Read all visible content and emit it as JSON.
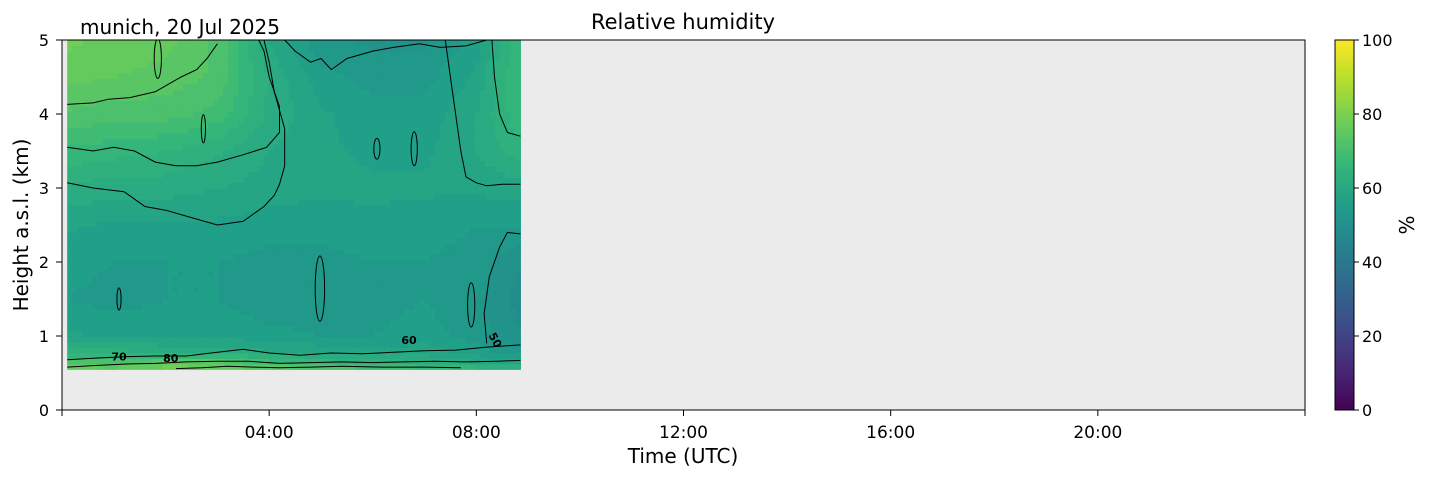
{
  "chart_data": {
    "type": "heatmap",
    "title": "Relative humidity",
    "location_date": "munich, 20 Jul 2025",
    "xlabel": "Time (UTC)",
    "ylabel": "Height a.s.l. (km)",
    "xlim_hours": [
      0,
      24
    ],
    "ylim_km": [
      0,
      5
    ],
    "x_ticks": [
      {
        "hour": 4,
        "label": "04:00"
      },
      {
        "hour": 8,
        "label": "08:00"
      },
      {
        "hour": 12,
        "label": "12:00"
      },
      {
        "hour": 16,
        "label": "16:00"
      },
      {
        "hour": 20,
        "label": "20:00"
      }
    ],
    "y_ticks": [
      {
        "value": 0,
        "label": "0"
      },
      {
        "value": 1,
        "label": "1"
      },
      {
        "value": 2,
        "label": "2"
      },
      {
        "value": 3,
        "label": "3"
      },
      {
        "value": 4,
        "label": "4"
      },
      {
        "value": 5,
        "label": "5"
      }
    ],
    "colorbar": {
      "label": "%",
      "colormap": "viridis",
      "range": [
        0,
        100
      ],
      "ticks": [
        {
          "value": 0,
          "label": "0"
        },
        {
          "value": 20,
          "label": "20"
        },
        {
          "value": 40,
          "label": "40"
        },
        {
          "value": 60,
          "label": "60"
        },
        {
          "value": 80,
          "label": "80"
        },
        {
          "value": 100,
          "label": "100"
        }
      ]
    },
    "data_extent_hours": [
      0.1,
      8.85
    ],
    "data_extent_km": [
      0.55,
      5.0
    ],
    "missing_color": "#ebebeb",
    "times_hours": [
      0.1,
      1.0,
      2.0,
      3.0,
      4.0,
      5.0,
      6.0,
      7.0,
      8.0,
      8.85
    ],
    "heights_km": [
      0.55,
      0.65,
      0.8,
      1.0,
      1.5,
      2.0,
      2.5,
      3.0,
      3.5,
      4.0,
      4.5,
      5.0
    ],
    "values": [
      [
        78,
        77,
        80,
        79,
        76,
        75,
        72,
        70,
        68,
        66
      ],
      [
        72,
        71,
        74,
        74,
        68,
        66,
        64,
        62,
        60,
        58
      ],
      [
        63,
        63,
        62,
        62,
        60,
        59,
        58,
        59,
        56,
        53
      ],
      [
        58,
        57,
        57,
        57,
        56,
        55,
        55,
        56,
        54,
        50
      ],
      [
        55,
        54,
        55,
        55,
        53,
        53,
        54,
        55,
        53,
        49
      ],
      [
        56,
        55,
        55,
        55,
        54,
        54,
        55,
        55,
        54,
        50
      ],
      [
        58,
        57,
        57,
        57,
        56,
        56,
        57,
        56,
        55,
        55
      ],
      [
        62,
        61,
        61,
        60,
        59,
        58,
        58,
        58,
        58,
        59
      ],
      [
        67,
        66,
        65,
        63,
        60,
        58,
        57,
        57,
        60,
        64
      ],
      [
        72,
        71,
        71,
        69,
        62,
        58,
        56,
        56,
        60,
        67
      ],
      [
        76,
        75,
        74,
        72,
        62,
        56,
        54,
        54,
        58,
        68
      ],
      [
        78,
        77,
        76,
        72,
        60,
        53,
        52,
        52,
        56,
        68
      ]
    ],
    "contour_labels": [
      {
        "text": "70",
        "hour": 1.1,
        "km": 0.67,
        "rotate": 0
      },
      {
        "text": "80",
        "hour": 2.1,
        "km": 0.65,
        "rotate": 0
      },
      {
        "text": "60",
        "hour": 6.7,
        "km": 0.89,
        "rotate": 0
      },
      {
        "text": "50",
        "hour": 8.3,
        "km": 0.92,
        "rotate": 62
      }
    ],
    "contour_lines": [
      [
        [
          0.1,
          5.0
        ],
        [
          0.8,
          5.0
        ]
      ],
      [
        [
          0.1,
          4.13
        ],
        [
          0.6,
          4.15
        ],
        [
          0.9,
          4.2
        ],
        [
          1.3,
          4.22
        ],
        [
          1.8,
          4.3
        ],
        [
          2.3,
          4.5
        ],
        [
          2.6,
          4.6
        ],
        [
          2.8,
          4.75
        ],
        [
          3.0,
          4.95
        ]
      ],
      [
        [
          0.1,
          3.55
        ],
        [
          0.6,
          3.5
        ],
        [
          1.0,
          3.55
        ],
        [
          1.4,
          3.5
        ],
        [
          1.8,
          3.35
        ],
        [
          2.2,
          3.3
        ],
        [
          2.6,
          3.3
        ],
        [
          3.0,
          3.35
        ],
        [
          3.5,
          3.45
        ],
        [
          3.95,
          3.55
        ],
        [
          4.2,
          3.75
        ],
        [
          4.2,
          4.1
        ],
        [
          4.0,
          4.5
        ],
        [
          3.9,
          4.85
        ],
        [
          3.8,
          5.0
        ]
      ],
      [
        [
          0.1,
          3.07
        ],
        [
          0.6,
          3.0
        ],
        [
          1.2,
          2.95
        ],
        [
          1.6,
          2.75
        ],
        [
          2.0,
          2.7
        ],
        [
          2.5,
          2.6
        ],
        [
          3.0,
          2.5
        ],
        [
          3.5,
          2.55
        ],
        [
          3.9,
          2.75
        ],
        [
          4.1,
          2.9
        ],
        [
          4.2,
          3.05
        ],
        [
          4.3,
          3.3
        ],
        [
          4.3,
          3.8
        ],
        [
          4.1,
          4.3
        ],
        [
          4.0,
          4.7
        ],
        [
          3.9,
          5.0
        ]
      ],
      [
        [
          4.3,
          5.0
        ],
        [
          4.5,
          4.85
        ],
        [
          4.8,
          4.7
        ],
        [
          5.0,
          4.75
        ],
        [
          5.2,
          4.6
        ],
        [
          5.5,
          4.75
        ],
        [
          6.0,
          4.85
        ],
        [
          6.4,
          4.9
        ],
        [
          6.9,
          4.95
        ],
        [
          7.3,
          4.9
        ],
        [
          7.8,
          4.92
        ],
        [
          8.2,
          5.0
        ]
      ],
      [
        [
          7.4,
          5.0
        ],
        [
          7.5,
          4.5
        ],
        [
          7.6,
          4.0
        ],
        [
          7.7,
          3.5
        ],
        [
          7.8,
          3.15
        ],
        [
          8.0,
          3.07
        ],
        [
          8.2,
          3.03
        ],
        [
          8.5,
          3.05
        ],
        [
          8.85,
          3.05
        ]
      ],
      [
        [
          8.3,
          5.0
        ],
        [
          8.35,
          4.5
        ],
        [
          8.45,
          4.0
        ],
        [
          8.6,
          3.75
        ],
        [
          8.85,
          3.7
        ]
      ],
      [
        [
          8.85,
          2.38
        ],
        [
          8.6,
          2.4
        ],
        [
          8.45,
          2.2
        ],
        [
          8.25,
          1.8
        ],
        [
          8.15,
          1.3
        ],
        [
          8.2,
          0.9
        ]
      ],
      [
        [
          0.1,
          0.68
        ],
        [
          0.6,
          0.7
        ],
        [
          1.2,
          0.72
        ],
        [
          1.8,
          0.73
        ],
        [
          2.4,
          0.73
        ],
        [
          3.0,
          0.78
        ],
        [
          3.5,
          0.82
        ],
        [
          4.0,
          0.77
        ],
        [
          4.6,
          0.74
        ],
        [
          5.2,
          0.77
        ],
        [
          5.8,
          0.76
        ],
        [
          6.4,
          0.78
        ],
        [
          7.0,
          0.8
        ],
        [
          7.6,
          0.81
        ],
        [
          8.2,
          0.85
        ],
        [
          8.85,
          0.88
        ]
      ],
      [
        [
          0.1,
          0.58
        ],
        [
          0.6,
          0.6
        ],
        [
          1.2,
          0.62
        ],
        [
          1.8,
          0.63
        ],
        [
          2.4,
          0.65
        ],
        [
          3.0,
          0.66
        ],
        [
          3.6,
          0.66
        ],
        [
          4.2,
          0.63
        ],
        [
          4.8,
          0.64
        ],
        [
          5.4,
          0.65
        ],
        [
          6.0,
          0.64
        ],
        [
          6.6,
          0.65
        ],
        [
          7.2,
          0.66
        ],
        [
          7.8,
          0.65
        ],
        [
          8.4,
          0.66
        ],
        [
          8.85,
          0.67
        ]
      ],
      [
        [
          2.2,
          0.56
        ],
        [
          2.7,
          0.57
        ],
        [
          3.2,
          0.59
        ],
        [
          3.7,
          0.58
        ],
        [
          4.2,
          0.57
        ],
        [
          4.8,
          0.58
        ],
        [
          5.4,
          0.59
        ],
        [
          6.2,
          0.58
        ],
        [
          7.0,
          0.58
        ],
        [
          7.7,
          0.57
        ]
      ]
    ],
    "contour_ellipses": [
      [
        1.85,
        4.75,
        0.07,
        0.27
      ],
      [
        2.73,
        3.8,
        0.04,
        0.19
      ],
      [
        6.08,
        3.53,
        0.06,
        0.14
      ],
      [
        6.8,
        3.53,
        0.06,
        0.23
      ],
      [
        4.98,
        1.64,
        0.09,
        0.44
      ],
      [
        7.9,
        1.42,
        0.07,
        0.3
      ],
      [
        1.1,
        1.5,
        0.04,
        0.15
      ]
    ]
  }
}
